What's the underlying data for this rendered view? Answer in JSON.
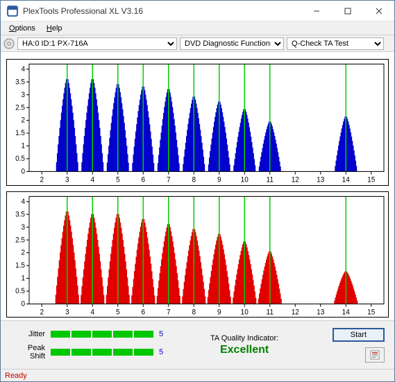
{
  "window": {
    "title": "PlexTools Professional XL V3.16"
  },
  "menu": {
    "options": "Options",
    "help": "Help"
  },
  "toolbar": {
    "drive_value": "HA:0 ID:1   PX-716A",
    "func_value": "DVD Diagnostic Functions",
    "test_value": "Q-Check TA Test"
  },
  "chart_top": {
    "type": "bar-histogram",
    "x_ticks": [
      2,
      3,
      4,
      5,
      6,
      7,
      8,
      9,
      10,
      11,
      12,
      13,
      14,
      15
    ],
    "y_ticks": [
      0,
      0.5,
      1,
      1.5,
      2,
      2.5,
      3,
      3.5,
      4
    ],
    "xlim": [
      1.5,
      15.5
    ],
    "ylim": [
      0,
      4.2
    ],
    "bar_color": "#0000cc",
    "bg": "#ffffff",
    "vlines_color": "#00d000",
    "vlines_x": [
      3,
      4,
      5,
      6,
      7,
      8,
      9,
      10,
      11,
      14
    ],
    "peaks": [
      {
        "c": 3,
        "h": 3.7
      },
      {
        "c": 4,
        "h": 3.7
      },
      {
        "c": 5,
        "h": 3.5
      },
      {
        "c": 6,
        "h": 3.4
      },
      {
        "c": 7,
        "h": 3.3
      },
      {
        "c": 8,
        "h": 3.0
      },
      {
        "c": 9,
        "h": 2.8
      },
      {
        "c": 10,
        "h": 2.5
      },
      {
        "c": 11,
        "h": 2.0
      },
      {
        "c": 14,
        "h": 2.2
      }
    ],
    "half_width": 0.45
  },
  "chart_bottom": {
    "type": "bar-histogram",
    "x_ticks": [
      2,
      3,
      4,
      5,
      6,
      7,
      8,
      9,
      10,
      11,
      12,
      13,
      14,
      15
    ],
    "y_ticks": [
      0,
      0.5,
      1,
      1.5,
      2,
      2.5,
      3,
      3.5,
      4
    ],
    "xlim": [
      1.5,
      15.5
    ],
    "ylim": [
      0,
      4.2
    ],
    "bar_color": "#e00000",
    "bg": "#ffffff",
    "vlines_color": "#00d000",
    "vlines_x": [
      3,
      4,
      5,
      6,
      7,
      8,
      9,
      10,
      11,
      14
    ],
    "peaks": [
      {
        "c": 3,
        "h": 3.7
      },
      {
        "c": 4,
        "h": 3.6
      },
      {
        "c": 5,
        "h": 3.6
      },
      {
        "c": 6,
        "h": 3.4
      },
      {
        "c": 7,
        "h": 3.2
      },
      {
        "c": 8,
        "h": 3.0
      },
      {
        "c": 9,
        "h": 2.8
      },
      {
        "c": 10,
        "h": 2.5
      },
      {
        "c": 11,
        "h": 2.1
      },
      {
        "c": 14,
        "h": 1.3
      }
    ],
    "half_width": 0.48
  },
  "meters": {
    "jitter_label": "Jitter",
    "jitter_value": "5",
    "jitter_segments": 5,
    "peak_label": "Peak Shift",
    "peak_value": "5",
    "peak_segments": 5,
    "seg_color": "#00c800"
  },
  "quality": {
    "label": "TA Quality Indicator:",
    "value": "Excellent",
    "value_color": "#008000"
  },
  "actions": {
    "start": "Start"
  },
  "status": {
    "text": "Ready",
    "color": "#c00000"
  }
}
